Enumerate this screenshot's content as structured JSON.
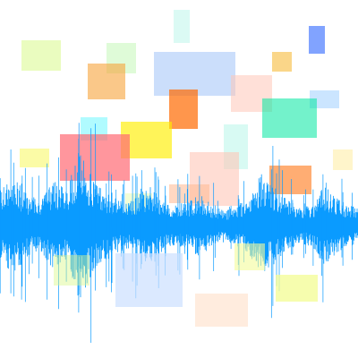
{
  "scene": {
    "background_color": "#ffffff",
    "waveform_color": "#0a9bff",
    "rectangle_palette": [
      "#d9f98a",
      "#b8f7a8",
      "#f7a33a",
      "#a8c8f8",
      "#ff6a00",
      "#ff6a73",
      "#7cf8ff",
      "#ffee00",
      "#ffc7b8",
      "#c3f7ec",
      "#00e8a0",
      "#f7ba3a",
      "#4c7cff",
      "#a8d4ff",
      "#ffeea8",
      "#f9f86a",
      "#ffe0c8",
      "#f4fc9a",
      "#cce0ff",
      "#ffb890"
    ]
  }
}
